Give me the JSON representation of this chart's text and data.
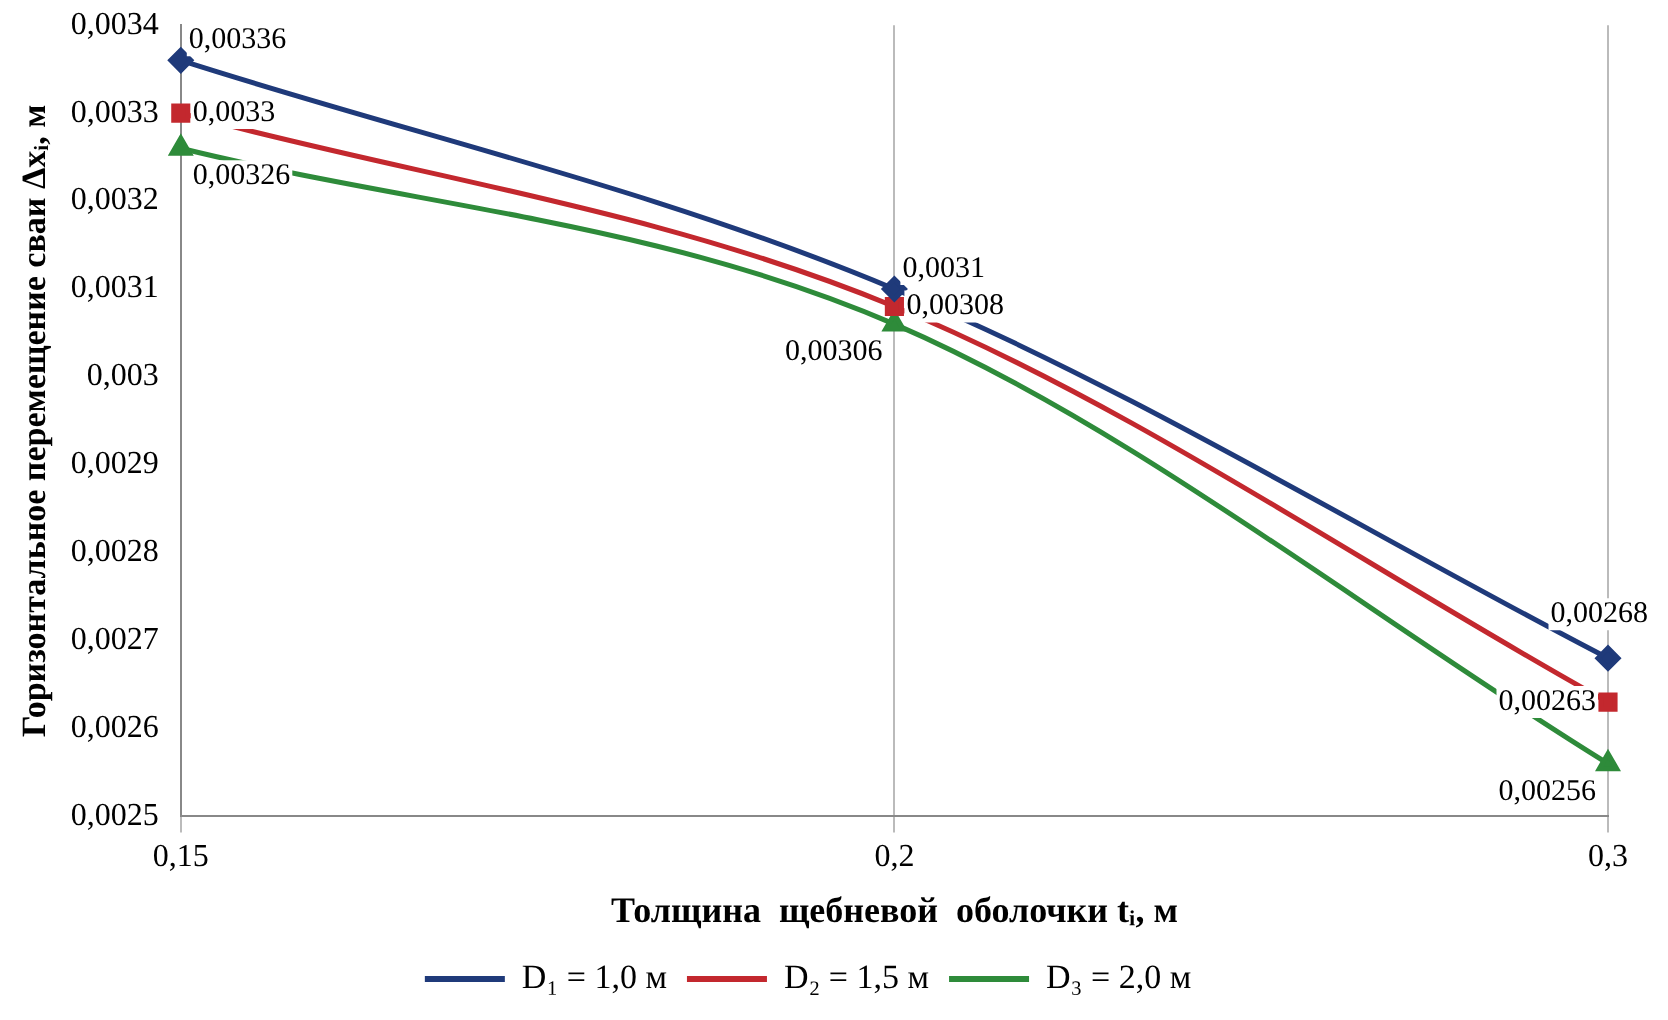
{
  "chart_data": {
    "type": "line",
    "xlabel": "Толщина  щебневой  оболочки tᵢ, м",
    "ylabel": "Горизонтальное перемещение сваи Δxᵢ, м",
    "categories": [
      "0,15",
      "0,2",
      "0,3"
    ],
    "series": [
      {
        "name": "D₁ = 1,0 м",
        "color": "#1f3a7a",
        "marker": "diamond",
        "values": [
          0.00336,
          0.0031,
          0.00268
        ],
        "value_labels": [
          "0,00336",
          "0,0031",
          "0,00268"
        ]
      },
      {
        "name": "D₂ = 1,5 м",
        "color": "#c3282e",
        "marker": "square",
        "values": [
          0.0033,
          0.00308,
          0.00263
        ],
        "value_labels": [
          "0,0033",
          "0,00308",
          "0,00263"
        ]
      },
      {
        "name": "D₃ = 2,0 м",
        "color": "#2e8b3a",
        "marker": "triangle",
        "values": [
          0.00326,
          0.00306,
          0.00256
        ],
        "value_labels": [
          "0,00326",
          "0,00306",
          "0,00256"
        ]
      }
    ],
    "ylim": [
      0.0025,
      0.0034
    ],
    "yticks": [
      {
        "value": 0.0025,
        "label": "0,0025"
      },
      {
        "value": 0.0026,
        "label": "0,0026"
      },
      {
        "value": 0.0027,
        "label": "0,0027"
      },
      {
        "value": 0.0028,
        "label": "0,0028"
      },
      {
        "value": 0.0029,
        "label": "0,0029"
      },
      {
        "value": 0.003,
        "label": "0,003"
      },
      {
        "value": 0.0031,
        "label": "0,0031"
      },
      {
        "value": 0.0032,
        "label": "0,0032"
      },
      {
        "value": 0.0033,
        "label": "0,0033"
      },
      {
        "value": 0.0034,
        "label": "0,0034"
      }
    ],
    "grid": "x",
    "legend": "bottom"
  }
}
